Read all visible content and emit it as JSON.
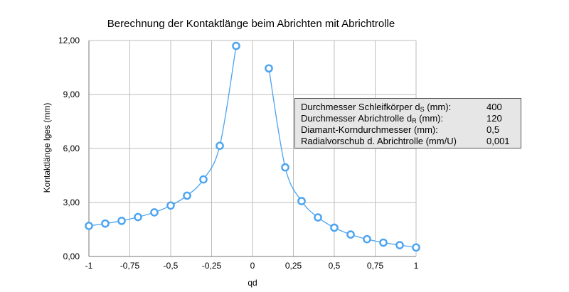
{
  "chart_data": {
    "type": "scatter",
    "title": "Berechnung der Kontaktlänge beim Abrichten mit Abrichtrolle",
    "xlabel": "qd",
    "ylabel": "Kontaktlänge lges (mm)",
    "xlim": [
      -1,
      1
    ],
    "ylim": [
      0,
      12
    ],
    "x_ticks": [
      "-1",
      "-0,75",
      "-0,5",
      "-0,25",
      "0",
      "0,25",
      "0,5",
      "0,75",
      "1"
    ],
    "y_ticks": [
      "0,00",
      "3,00",
      "6,00",
      "9,00",
      "12,00"
    ],
    "grid": true,
    "series": [
      {
        "x": [
          -1,
          -0.9,
          -0.8,
          -0.7,
          -0.6,
          -0.5,
          -0.4,
          -0.3,
          -0.2,
          -0.1
        ],
        "y": [
          1.7,
          1.83,
          1.98,
          2.19,
          2.45,
          2.83,
          3.38,
          4.28,
          6.15,
          11.7
        ]
      },
      {
        "x": [
          0.1,
          0.2,
          0.3,
          0.4,
          0.5,
          0.6,
          0.7,
          0.8,
          0.9,
          1.0
        ],
        "y": [
          10.45,
          4.95,
          3.08,
          2.17,
          1.6,
          1.22,
          0.96,
          0.77,
          0.63,
          0.5
        ]
      }
    ],
    "marker_color": "#4aa3f0",
    "line_color": "#4aa3f0"
  },
  "info_box": {
    "rows": [
      {
        "label": "Durchmesser Schleifkörper d",
        "sub": "S",
        "suffix": " (mm):",
        "value": "400"
      },
      {
        "label": "Durchmesser Abrichtrolle d",
        "sub": "R",
        "suffix": " (mm):",
        "value": "120"
      },
      {
        "label": "Diamant-Korndurchmesser (mm):",
        "sub": "",
        "suffix": "",
        "value": "0,5"
      },
      {
        "label": "Radialvorschub d. Abrichtrolle (mm/U)",
        "sub": "",
        "suffix": "",
        "value": "0,001"
      }
    ]
  }
}
